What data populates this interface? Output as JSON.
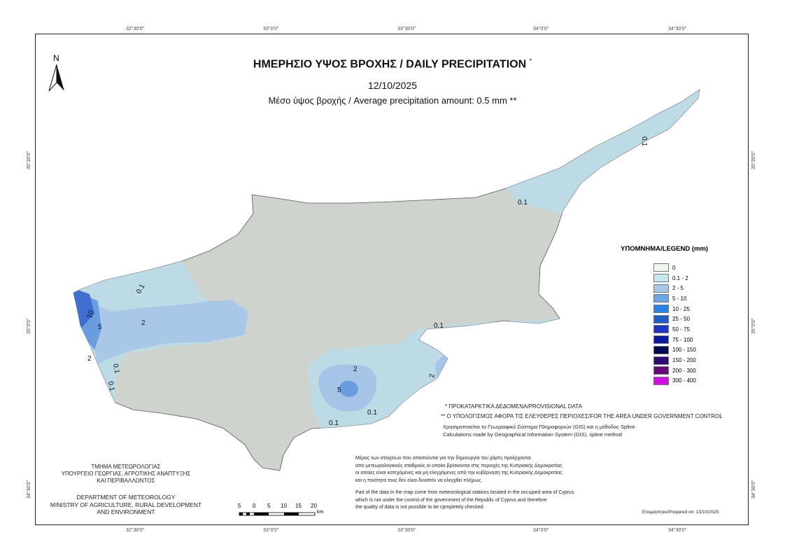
{
  "title": "ΗΜΕΡΗΣΙΟ ΥΨΟΣ ΒΡΟΧΗΣ / DAILY PRECIPITATION",
  "title_mark": "*",
  "date": "12/10/2025",
  "average": "Μέσο ύψος βροχής / Average precipitation amount: 0.5 mm",
  "average_mark": "**",
  "north_label": "N",
  "graticule": {
    "longitudes": [
      "32°30'0\"",
      "33°0'0\"",
      "33°30'0\"",
      "34°0'0\"",
      "34°30'0\""
    ],
    "latitudes": [
      "35°30'0\"",
      "35°0'0\"",
      "34°30'0\""
    ]
  },
  "legend": {
    "title": "ΥΠΟΜΝΗΜΑ/LEGEND (mm)",
    "items": [
      {
        "label": "0",
        "color": "#eef8ee"
      },
      {
        "label": "0.1 - 2",
        "color": "#c4e8ee"
      },
      {
        "label": "2 - 5",
        "color": "#a6c8e8"
      },
      {
        "label": "5 - 10",
        "color": "#6aa6e4"
      },
      {
        "label": "10 - 25",
        "color": "#2684e4"
      },
      {
        "label": "25 - 50",
        "color": "#1e5ec6"
      },
      {
        "label": "50 - 75",
        "color": "#1e34c4"
      },
      {
        "label": "75 - 100",
        "color": "#0a1aa0"
      },
      {
        "label": "100 - 150",
        "color": "#040a50"
      },
      {
        "label": "150 - 200",
        "color": "#2e0a74"
      },
      {
        "label": "200 - 300",
        "color": "#620a7a"
      },
      {
        "label": "300 - 400",
        "color": "#d40ae8"
      }
    ]
  },
  "contour_labels": [
    "0.1",
    "2",
    "5",
    "10",
    "2",
    "0.1",
    "2",
    "5",
    "0.1",
    "0.1",
    "0.1",
    "0.1",
    "2",
    "0.1",
    "0.1"
  ],
  "notes": {
    "provisional": "* ΠΡΟΚΑΤΑΡΚΤΙΚΑ ΔΕΔΟΜΕΝΑ/PROVISIONAL DATA",
    "area": "** Ο ΥΠΟΛΟΓΙΣΜΟΣ ΑΦΟΡΑ ΤΙΣ ΕΛΕΥΘΕΡΕΣ ΠΕΡΙΟΧΕΣ/FOR THE AREA UNDER GOVERNMENT CONTROL",
    "gis_gr": "Χρησιμοποιείται το Γεωγραφικό Σύστημα Πληροφοριών (GIS) και η μέθοδος Spline",
    "gis_en": "Calculations made by Geographical Information System (GIS), spline method",
    "occupied_gr": [
      "Μέρος των στοιχείων που απαιτούνται για την δημιουργία του χάρτη προέρχονται",
      "από μετεωρολογικούς σταθμούς οι οποίοι βρίσκονται στις περιοχές της Κυπριακής Δημοκρατίας",
      "οι οποίες είναι κατεχόμενες και μη ελεγχόμενες από την κυβέρνηση της Κυπριακής Δημοκρατίας",
      "και η ποιότητα τους δεν είναι δυνατόν να ελεγχθεί πλήρως."
    ],
    "occupied_en": [
      "Part of the data in the map come from meteorological stations located in the occupied area of Cyprus",
      "which is not under the control of the government of the Republic of Cyprus and therefore",
      "the quality of data is not possible to be cpmpletely checked."
    ],
    "prepared": "Ετοιμάστηκε/Prepared on: 13/10/2025"
  },
  "department": {
    "gr": [
      "ΤΜΗΜΑ ΜΕΤΕΩΡΟΛΟΓΙΑΣ",
      "ΥΠΟΥΡΓΕΙΟ ΓΕΩΡΓΙΑΣ, ΑΓΡΟΤΙΚΗΣ ΑΝΑΠΤΥΞΗΣ",
      "ΚΑΙ ΠΕΡΙΒΑΛΛΟΝΤΟΣ"
    ],
    "en": [
      "DEPARTMENT OF METEOROLOGY",
      "MINISTRY OF AGRICULTURE, RURAL DEVELOPMENT",
      "AND ENVIRONMENT"
    ]
  },
  "scale_bar": {
    "labels": [
      "5",
      "0",
      "5",
      "10",
      "15",
      "20"
    ],
    "unit": "km"
  }
}
